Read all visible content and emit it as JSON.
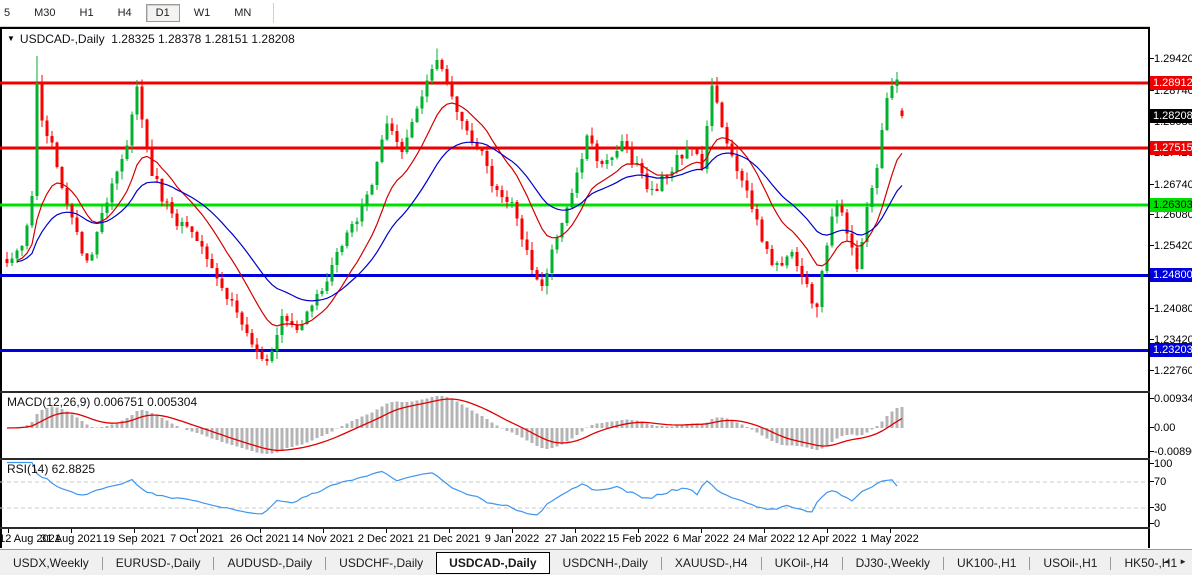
{
  "toolbar": {
    "timeframes": [
      "5",
      "M30",
      "H1",
      "H4",
      "D1",
      "W1",
      "MN"
    ],
    "active_timeframe": "D1"
  },
  "chart_data": {
    "type": "candlestick",
    "symbol": "USDCAD-",
    "timeframe": "Daily",
    "title_display": "USDCAD-,Daily  1.28325 1.28378 1.28151 1.28208",
    "last_bar": {
      "open": 1.28325,
      "high": 1.28378,
      "low": 1.28151,
      "close": 1.28208
    },
    "y_axis_ticks": [
      1.2942,
      1.2874,
      1.2808,
      1.2742,
      1.2674,
      1.2608,
      1.2542,
      1.2474,
      1.2408,
      1.2342,
      1.2276
    ],
    "levels": [
      {
        "price": 1.28912,
        "color": "#ee0000",
        "text_color": "#ffffff"
      },
      {
        "price": 1.27515,
        "color": "#ee0000",
        "text_color": "#ffffff"
      },
      {
        "price": 1.26303,
        "color": "#00e000",
        "text_color": "#000000"
      },
      {
        "price": 1.248,
        "color": "#0000dd",
        "text_color": "#ffffff"
      },
      {
        "price": 1.23203,
        "color": "#0000dd",
        "text_color": "#ffffff"
      }
    ],
    "current_price": {
      "price": 1.28208,
      "bg": "#000000",
      "text_color": "#ffffff"
    },
    "x_labels": [
      "12 Aug 2021",
      "31 Aug 2021",
      "19 Sep 2021",
      "7 Oct 2021",
      "26 Oct 2021",
      "14 Nov 2021",
      "2 Dec 2021",
      "21 Dec 2021",
      "9 Jan 2022",
      "27 Jan 2022",
      "15 Feb 2022",
      "6 Mar 2022",
      "24 Mar 2022",
      "12 Apr 2022",
      "1 May 2022"
    ],
    "bars_total": 180,
    "price_path": [
      [
        0,
        1.2515
      ],
      [
        3,
        1.2555
      ],
      [
        5,
        1.264
      ],
      [
        6,
        1.289
      ],
      [
        7,
        1.282
      ],
      [
        9,
        1.276
      ],
      [
        12,
        1.263
      ],
      [
        16,
        1.25
      ],
      [
        20,
        1.2645
      ],
      [
        24,
        1.276
      ],
      [
        26,
        1.2878
      ],
      [
        29,
        1.27
      ],
      [
        33,
        1.26
      ],
      [
        38,
        1.256
      ],
      [
        42,
        1.2465
      ],
      [
        46,
        1.2405
      ],
      [
        49,
        1.233
      ],
      [
        52,
        1.23
      ],
      [
        55,
        1.2395
      ],
      [
        58,
        1.236
      ],
      [
        63,
        1.2455
      ],
      [
        68,
        1.2565
      ],
      [
        72,
        1.265
      ],
      [
        76,
        1.2795
      ],
      [
        79,
        1.2735
      ],
      [
        83,
        1.287
      ],
      [
        86,
        1.2935
      ],
      [
        88,
        1.2895
      ],
      [
        91,
        1.2805
      ],
      [
        95,
        1.2735
      ],
      [
        98,
        1.265
      ],
      [
        101,
        1.263
      ],
      [
        104,
        1.2525
      ],
      [
        107,
        1.246
      ],
      [
        110,
        1.2555
      ],
      [
        113,
        1.265
      ],
      [
        116,
        1.2775
      ],
      [
        119,
        1.2705
      ],
      [
        123,
        1.2755
      ],
      [
        126,
        1.271
      ],
      [
        129,
        1.2655
      ],
      [
        132,
        1.27
      ],
      [
        136,
        1.2755
      ],
      [
        139,
        1.272
      ],
      [
        141,
        1.2885
      ],
      [
        144,
        1.277
      ],
      [
        147,
        1.2685
      ],
      [
        151,
        1.2555
      ],
      [
        154,
        1.2495
      ],
      [
        157,
        1.252
      ],
      [
        160,
        1.2455
      ],
      [
        162,
        1.2405
      ],
      [
        164,
        1.2555
      ],
      [
        166,
        1.264
      ],
      [
        168,
        1.258
      ],
      [
        170,
        1.2485
      ],
      [
        172,
        1.262
      ],
      [
        174,
        1.2715
      ],
      [
        176,
        1.2855
      ],
      [
        178,
        1.2905
      ],
      [
        179,
        1.2821
      ]
    ],
    "spikes": [
      {
        "i": 6,
        "high": 1.2948
      },
      {
        "i": 26,
        "high": 1.2896
      },
      {
        "i": 52,
        "low": 1.2288
      },
      {
        "i": 86,
        "high": 1.2964
      },
      {
        "i": 141,
        "high": 1.2901
      },
      {
        "i": 162,
        "low": 1.239
      },
      {
        "i": 178,
        "high": 1.2913
      }
    ],
    "candle_up_color": "#00b22d",
    "candle_down_color": "#ff0000",
    "ma_fast_color": "#d20000",
    "ma_slow_color": "#0000c8",
    "macd": {
      "label": "MACD(12,26,9)",
      "main": 0.006751,
      "signal": 0.005304,
      "display": "MACD(12,26,9) 0.006751 0.005304",
      "axis_labels": [
        "0.009345",
        "0.00",
        "-0.008902"
      ],
      "histogram_color": "#b4b4b4",
      "signal_color": "#e00000"
    },
    "rsi": {
      "label": "RSI(14)",
      "value": 62.8825,
      "display": "RSI(14) 62.8825",
      "axis_labels": [
        "100",
        "70",
        "30",
        "0"
      ],
      "upper_level": 70,
      "lower_level": 30,
      "line_color": "#3d96f0"
    }
  },
  "tabs": {
    "items": [
      "USDX,Weekly",
      "EURUSD-,Daily",
      "AUDUSD-,Daily",
      "USDCHF-,Daily",
      "USDCAD-,Daily",
      "USDCNH-,Daily",
      "XAUUSD-,H4",
      "UKOil-,H4",
      "DJ30-,Weekly",
      "UK100-,H1",
      "USOil-,H1",
      "HK50-,H1"
    ],
    "active": "USDCAD-,Daily",
    "scroll_left": "◄",
    "scroll_right": "►"
  }
}
